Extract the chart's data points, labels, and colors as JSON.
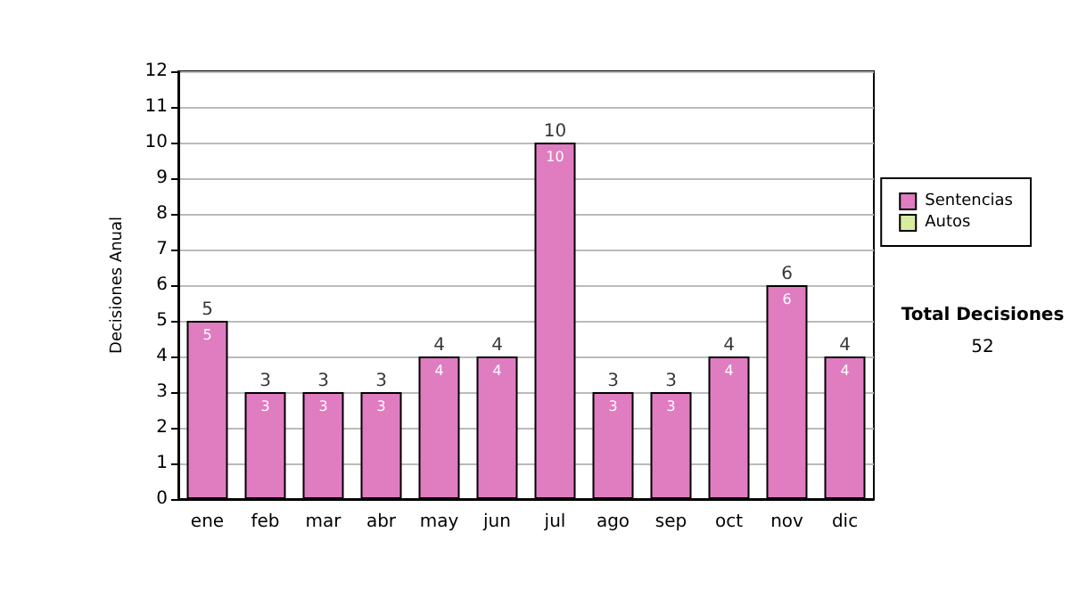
{
  "chart_data": {
    "type": "bar",
    "stacked": true,
    "ylabel": "Decisiones Anual",
    "categories": [
      "ene",
      "feb",
      "mar",
      "abr",
      "may",
      "jun",
      "jul",
      "ago",
      "sep",
      "oct",
      "nov",
      "dic"
    ],
    "series": [
      {
        "name": "Sentencias",
        "color": "#e07cc0",
        "values": [
          5,
          3,
          3,
          3,
          4,
          4,
          10,
          3,
          3,
          4,
          6,
          4
        ]
      },
      {
        "name": "Autos",
        "color": "#d8eca0",
        "values": [
          null,
          null,
          null,
          null,
          null,
          null,
          null,
          null,
          null,
          null,
          null,
          null
        ]
      }
    ],
    "data_labels": true,
    "totals": [
      "5",
      "3",
      "3",
      "3",
      "4",
      "4",
      "10",
      "3",
      "3",
      "4",
      "6",
      "4"
    ],
    "ylim": [
      0,
      12
    ],
    "yticks": [
      0,
      1,
      2,
      3,
      4,
      5,
      6,
      7,
      8,
      9,
      10,
      11,
      12
    ],
    "grid": "y",
    "legend": "right",
    "annotations": [
      "Total Decisiones",
      "52"
    ]
  }
}
